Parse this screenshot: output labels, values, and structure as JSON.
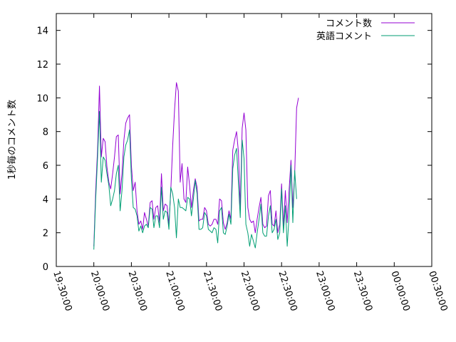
{
  "chart_data": {
    "type": "line",
    "title": "",
    "xlabel": "",
    "ylabel": "1秒毎のコメント数",
    "xlim": [
      "19:30:00",
      "00:30:00"
    ],
    "ylim": [
      0,
      15
    ],
    "grid": false,
    "legend": "top-right",
    "y_ticks": [
      0,
      2,
      4,
      6,
      8,
      10,
      12,
      14
    ],
    "x_ticks": [
      "19:30:00",
      "20:00:00",
      "20:30:00",
      "21:00:00",
      "21:30:00",
      "22:00:00",
      "22:30:00",
      "23:00:00",
      "23:30:00",
      "00:00:00",
      "00:30:00"
    ],
    "x_tick_minutes": [
      -30,
      0,
      30,
      60,
      90,
      120,
      150,
      180,
      210,
      240,
      270
    ],
    "x_minutes_since": "20:00:00",
    "series": [
      {
        "name": "コメント数",
        "color": "#9400d3",
        "points": [
          [
            0,
            1.2
          ],
          [
            1.5,
            4.5
          ],
          [
            3,
            7
          ],
          [
            4.5,
            10.7
          ],
          [
            6,
            6.5
          ],
          [
            7.5,
            7.6
          ],
          [
            9,
            7.4
          ],
          [
            10.5,
            5.9
          ],
          [
            12,
            5
          ],
          [
            13.5,
            4.6
          ],
          [
            15,
            5.5
          ],
          [
            16.5,
            6.5
          ],
          [
            18,
            7.7
          ],
          [
            19.5,
            7.8
          ],
          [
            21,
            4.3
          ],
          [
            22.5,
            5.5
          ],
          [
            24,
            7.5
          ],
          [
            25.5,
            8.5
          ],
          [
            27,
            8.8
          ],
          [
            28.5,
            9
          ],
          [
            30,
            6
          ],
          [
            31.5,
            4.5
          ],
          [
            33,
            5
          ],
          [
            34.5,
            3.3
          ],
          [
            36,
            2.5
          ],
          [
            37.5,
            2.7
          ],
          [
            39,
            2.2
          ],
          [
            40.5,
            3.2
          ],
          [
            42,
            2.8
          ],
          [
            43.5,
            2.4
          ],
          [
            45,
            3.8
          ],
          [
            46.5,
            3.9
          ],
          [
            48,
            2.8
          ],
          [
            49.5,
            3.5
          ],
          [
            51,
            3.6
          ],
          [
            52.5,
            2.6
          ],
          [
            54,
            5.5
          ],
          [
            55.5,
            3.3
          ],
          [
            57,
            3.7
          ],
          [
            58.5,
            3.6
          ],
          [
            60,
            2.5
          ],
          [
            61.5,
            4.5
          ],
          [
            63,
            7.2
          ],
          [
            64.5,
            9.3
          ],
          [
            66,
            10.9
          ],
          [
            67.5,
            10.4
          ],
          [
            69,
            5
          ],
          [
            70.5,
            6.1
          ],
          [
            72,
            4
          ],
          [
            73.5,
            3.8
          ],
          [
            75,
            5.9
          ],
          [
            76.5,
            4.8
          ],
          [
            78,
            3.5
          ],
          [
            79.5,
            4.5
          ],
          [
            81,
            5.2
          ],
          [
            82.5,
            4.7
          ],
          [
            84,
            2.7
          ],
          [
            85.5,
            2.8
          ],
          [
            87,
            2.8
          ],
          [
            88.5,
            3.5
          ],
          [
            90,
            3.3
          ],
          [
            91.5,
            2.5
          ],
          [
            93,
            2.4
          ],
          [
            94.5,
            2.5
          ],
          [
            96,
            2.8
          ],
          [
            97.5,
            2.8
          ],
          [
            99,
            2.5
          ],
          [
            100.5,
            4
          ],
          [
            102,
            3.9
          ],
          [
            103.5,
            2.6
          ],
          [
            105,
            2.2
          ],
          [
            106.5,
            2.6
          ],
          [
            108,
            3.3
          ],
          [
            109.5,
            2.8
          ],
          [
            111,
            6.9
          ],
          [
            112.5,
            7.5
          ],
          [
            114,
            8
          ],
          [
            115.5,
            6.8
          ],
          [
            117,
            3.5
          ],
          [
            118.5,
            8.2
          ],
          [
            120,
            9.1
          ],
          [
            121.5,
            8.1
          ],
          [
            123,
            3.5
          ],
          [
            124.5,
            2.8
          ],
          [
            126,
            2.6
          ],
          [
            127.5,
            2.7
          ],
          [
            129,
            2
          ],
          [
            130.5,
            2.8
          ],
          [
            132,
            3.5
          ],
          [
            133.5,
            4.1
          ],
          [
            135,
            2.5
          ],
          [
            136.5,
            2.3
          ],
          [
            138,
            2.4
          ],
          [
            139.5,
            4.2
          ],
          [
            141,
            4.5
          ],
          [
            142.5,
            2.5
          ],
          [
            144,
            2.4
          ],
          [
            145.5,
            3.3
          ],
          [
            147,
            2
          ],
          [
            148.5,
            2.5
          ],
          [
            150,
            4.9
          ],
          [
            151.5,
            2.4
          ],
          [
            153,
            4.5
          ],
          [
            154.5,
            2.6
          ],
          [
            156,
            4.5
          ],
          [
            157.5,
            6.3
          ],
          [
            159,
            3.5
          ],
          [
            160.5,
            5.5
          ],
          [
            162,
            9.4
          ],
          [
            163.5,
            10
          ]
        ]
      },
      {
        "name": "英語コメント",
        "color": "#009e73",
        "points": [
          [
            0,
            1
          ],
          [
            1.5,
            4
          ],
          [
            3,
            6.5
          ],
          [
            4.5,
            9.2
          ],
          [
            6,
            5
          ],
          [
            7.5,
            6.5
          ],
          [
            9,
            6.3
          ],
          [
            10.5,
            5.5
          ],
          [
            12,
            4.8
          ],
          [
            13.5,
            3.6
          ],
          [
            15,
            4
          ],
          [
            16.5,
            4.5
          ],
          [
            18,
            5.5
          ],
          [
            19.5,
            6
          ],
          [
            21,
            3.3
          ],
          [
            22.5,
            4.5
          ],
          [
            24,
            6.5
          ],
          [
            25.5,
            7.2
          ],
          [
            27,
            7.5
          ],
          [
            28.5,
            8.1
          ],
          [
            30,
            5.2
          ],
          [
            31.5,
            3.5
          ],
          [
            33,
            3.4
          ],
          [
            34.5,
            3
          ],
          [
            36,
            2.1
          ],
          [
            37.5,
            2.4
          ],
          [
            39,
            2
          ],
          [
            40.5,
            2.4
          ],
          [
            42,
            2.5
          ],
          [
            43.5,
            2.3
          ],
          [
            45,
            3.5
          ],
          [
            46.5,
            3.4
          ],
          [
            48,
            2.3
          ],
          [
            49.5,
            3
          ],
          [
            51,
            3
          ],
          [
            52.5,
            2.3
          ],
          [
            54,
            4.7
          ],
          [
            55.5,
            2.8
          ],
          [
            57,
            3.3
          ],
          [
            58.5,
            3.2
          ],
          [
            60,
            2.2
          ],
          [
            61.5,
            4.7
          ],
          [
            63,
            4.3
          ],
          [
            64.5,
            3.5
          ],
          [
            66,
            1.7
          ],
          [
            67.5,
            4
          ],
          [
            69,
            3.5
          ],
          [
            70.5,
            3.5
          ],
          [
            72,
            3.4
          ],
          [
            73.5,
            3.3
          ],
          [
            75,
            4.1
          ],
          [
            76.5,
            4
          ],
          [
            78,
            3
          ],
          [
            79.5,
            4
          ],
          [
            81,
            5.1
          ],
          [
            82.5,
            4.3
          ],
          [
            84,
            2.2
          ],
          [
            85.5,
            2.2
          ],
          [
            87,
            2.3
          ],
          [
            88.5,
            3.2
          ],
          [
            90,
            3
          ],
          [
            91.5,
            2.2
          ],
          [
            93,
            2.1
          ],
          [
            94.5,
            2
          ],
          [
            96,
            2.3
          ],
          [
            97.5,
            2.2
          ],
          [
            99,
            1.4
          ],
          [
            100.5,
            3.3
          ],
          [
            102,
            3.5
          ],
          [
            103.5,
            2
          ],
          [
            105,
            1.9
          ],
          [
            106.5,
            2.4
          ],
          [
            108,
            3.1
          ],
          [
            109.5,
            2.5
          ],
          [
            111,
            5.8
          ],
          [
            112.5,
            6.6
          ],
          [
            114,
            7
          ],
          [
            115.5,
            5
          ],
          [
            117,
            2.9
          ],
          [
            118.5,
            7.5
          ],
          [
            120,
            6.4
          ],
          [
            121.5,
            2.5
          ],
          [
            123,
            2
          ],
          [
            124.5,
            1.2
          ],
          [
            126,
            1.9
          ],
          [
            127.5,
            1.5
          ],
          [
            129,
            1.1
          ],
          [
            130.5,
            2
          ],
          [
            132,
            2.8
          ],
          [
            133.5,
            3.7
          ],
          [
            135,
            2
          ],
          [
            136.5,
            1.8
          ],
          [
            138,
            1.8
          ],
          [
            139.5,
            3
          ],
          [
            141,
            3.6
          ],
          [
            142.5,
            2
          ],
          [
            144,
            2.2
          ],
          [
            145.5,
            2.8
          ],
          [
            147,
            1.6
          ],
          [
            148.5,
            2
          ],
          [
            150,
            4.6
          ],
          [
            151.5,
            2
          ],
          [
            153,
            3.6
          ],
          [
            154.5,
            1.2
          ],
          [
            156,
            3
          ],
          [
            157.5,
            6
          ],
          [
            159,
            2.6
          ],
          [
            160.5,
            5.7
          ],
          [
            162,
            4
          ]
        ]
      }
    ]
  }
}
